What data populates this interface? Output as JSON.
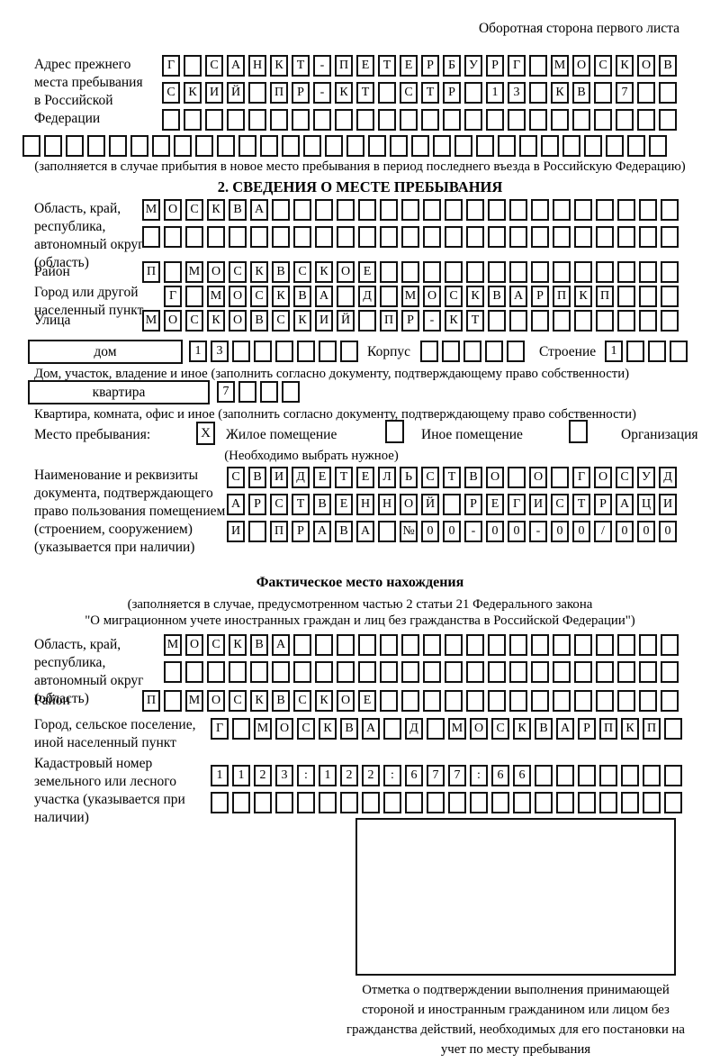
{
  "page": {
    "side_note": "Оборотная сторона первого листа"
  },
  "prev_address": {
    "label": "Адрес прежнего места пребывания в Российской Федерации",
    "row1": "Г САНКТ-ПЕТЕРБУРГ МОСКОВ",
    "row2": "СКИЙ ПР-КТ СТР 13 КВ 7",
    "row3": "",
    "row4": "",
    "note": "(заполняется в случае прибытия в новое место пребывания в период последнего въезда в Российскую Федерацию)"
  },
  "section2": {
    "title": "2. СВЕДЕНИЯ О МЕСТЕ ПРЕБЫВАНИЯ",
    "region_label": "Область, край, республика, автономный округ (область)",
    "region_row1": "МОСКВА",
    "region_row2": "",
    "district_label": "Район",
    "district_row": "П МОСКВСКОЕ",
    "city_label": "Город или другой населенный пункт",
    "city_row": "Г МОСКВА Д МОСКВАРПКП",
    "street_label": "Улица",
    "street_row": "МОСКОВСКИЙ ПР-КТ",
    "house_box_label": "дом",
    "house_cells": "13",
    "korpus_label": "Корпус",
    "korpus_cells": "",
    "stroenie_label": "Строение",
    "stroenie_cells": "1",
    "house_caption": "Дом, участок, владение и иное (заполнить согласно документу, подтверждающему право собственности)",
    "apartment_box_label": "квартира",
    "apartment_cells": "7",
    "apartment_caption": "Квартира, комната, офис и иное (заполнить согласно документу, подтверждающему право собственности)",
    "stay_label": "Место пребывания:",
    "stay_checked_mark": "X",
    "stay_option1": "Жилое помещение",
    "stay_option2": "Иное помещение",
    "stay_option3": "Организация",
    "stay_note": "(Необходимо выбрать нужное)",
    "doc_label": "Наименование и реквизиты документа, подтверждающего право пользования помещением (строением, сооружением) (указывается при наличии)",
    "doc_row1": "СВИДЕТЕЛЬСТВО О ГОСУД",
    "doc_row2": "АРСТВЕННОЙ РЕГИСТРАЦИ",
    "doc_row3": "И ПРАВА №00-00-00/000"
  },
  "actual": {
    "title": "Фактическое место нахождения",
    "note1": "(заполняется в случае, предусмотренном частью 2 статьи 21 Федерального закона",
    "note2": "\"О миграционном учете иностранных граждан и лиц без гражданства в Российской Федерации\")",
    "region_label": "Область, край, республика, автономный округ (область)",
    "region_row1": "МОСКВА",
    "region_row2": "",
    "district_label": "Район",
    "district_row": "П МОСКВСКОЕ",
    "city_label": "Город, сельское поселение, иной населенный пункт",
    "city_row": "Г МОСКВА Д МОСКВАРПКП",
    "cadastral_label": "Кадастровый номер земельного или лесного участка (указывается при наличии)",
    "cadastral_row1": "1123:122:677:66",
    "cadastral_row2": ""
  },
  "confirmation_caption": "Отметка о подтверждении выполнения принимающей стороной и иностранным гражданином или лицом без гражданства действий, необходимых для его постановки на учет по месту пребывания"
}
